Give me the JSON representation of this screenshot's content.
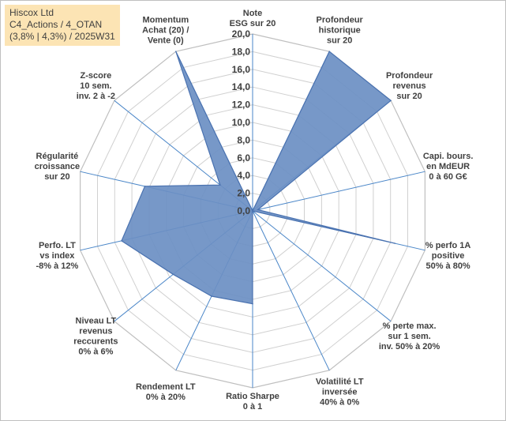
{
  "header": {
    "line1": "Hiscox Ltd",
    "line2": "C4_Actions / 4_OTAN",
    "line3": "(3,8% | 4,3%) / 2025W31"
  },
  "chart_data": {
    "type": "radar",
    "rmin": 0,
    "rmax": 20,
    "ticks": [
      "0,0",
      "2,0",
      "4,0",
      "6,0",
      "8,0",
      "10,0",
      "12,0",
      "14,0",
      "16,0",
      "18,0",
      "20,0"
    ],
    "axes": [
      {
        "label": [
          "Note",
          "ESG sur 20"
        ],
        "value": 0
      },
      {
        "label": [
          "Profondeur",
          "historique",
          "sur 20"
        ],
        "value": 20
      },
      {
        "label": [
          "Profondeur",
          "revenus",
          "sur 20"
        ],
        "value": 20
      },
      {
        "label": [
          "Capi. bours.",
          "en MdEUR",
          "0 à 60 G€"
        ],
        "value": 0.6
      },
      {
        "label": [
          "% perfo 1A",
          "positive",
          "50% à 80%"
        ],
        "value": 16.5
      },
      {
        "label": [
          "% perte max.",
          "sur 1 sem.",
          "inv. 50% à 20%"
        ],
        "value": 0
      },
      {
        "label": [
          "Volatilité LT",
          "inversée",
          "40% à 0%"
        ],
        "value": 0
      },
      {
        "label": [
          "Ratio Sharpe",
          "0 à 1"
        ],
        "value": 10.5
      },
      {
        "label": [
          "Rendement LT",
          "0% à 20%"
        ],
        "value": 10.7
      },
      {
        "label": [
          "Niveau LT",
          "revenus",
          "reccurents",
          "0% à 6%"
        ],
        "value": 11.5
      },
      {
        "label": [
          "Perfo. LT",
          "vs index",
          "-8% à 12%"
        ],
        "value": 15.2
      },
      {
        "label": [
          "Régularité",
          "croissance",
          "sur 20"
        ],
        "value": 12.5
      },
      {
        "label": [
          "Z-score",
          "10 sem.",
          "inv. 2 à -2"
        ],
        "value": 4.7
      },
      {
        "label": [
          "Momentum",
          "Achat (20) /",
          "Vente (0)"
        ],
        "value": 20
      }
    ],
    "series": [
      {
        "values": [
          0,
          20,
          20,
          0.6,
          16.5,
          0,
          0,
          10.5,
          10.7,
          11.5,
          15.2,
          12.5,
          4.7,
          20
        ]
      }
    ],
    "colors": {
      "fill": "#6b8fc3",
      "stroke": "#4a72b0",
      "axis": "#4a86c8",
      "grid": "#d0d0d0",
      "text": "#404040"
    }
  }
}
